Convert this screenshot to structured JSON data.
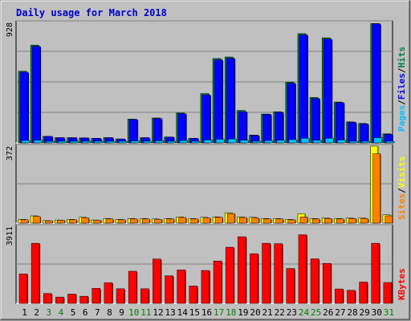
{
  "title": "Daily usage for March 2018",
  "colors": {
    "background": "#c0c0c0",
    "plot": "#c0c0c0",
    "title": "#0000cc",
    "hits": "#008040",
    "files": "#0000ff",
    "pages": "#00c0ff",
    "visits": "#ffff00",
    "sites": "#ff8000",
    "kbytes": "#ff0000",
    "grid": "#808080",
    "weekend_label": "#008000",
    "weekday_label": "#000000"
  },
  "chart_data": [
    {
      "type": "bar",
      "title": "Daily usage for March 2018",
      "ymax_label": "928",
      "ylim": [
        0,
        928
      ],
      "legend": [
        "Pages",
        "Files",
        "Hits"
      ],
      "legend_separators": [
        "/",
        "/"
      ],
      "categories": [
        "1",
        "2",
        "3",
        "4",
        "5",
        "6",
        "7",
        "8",
        "9",
        "10",
        "11",
        "12",
        "13",
        "14",
        "15",
        "16",
        "17",
        "18",
        "19",
        "20",
        "21",
        "22",
        "23",
        "24",
        "25",
        "26",
        "27",
        "28",
        "29",
        "30",
        "31"
      ],
      "weekend_days": [
        "3",
        "4",
        "10",
        "11",
        "17",
        "18",
        "24",
        "25",
        "31"
      ],
      "series": [
        {
          "name": "Hits",
          "values": [
            552,
            754,
            50,
            40,
            40,
            38,
            35,
            40,
            30,
            183,
            40,
            192,
            45,
            230,
            35,
            380,
            650,
            662,
            250,
            60,
            222,
            240,
            468,
            842,
            350,
            810,
            315,
            162,
            150,
            920,
            70
          ]
        },
        {
          "name": "Files",
          "values": [
            545,
            744,
            50,
            40,
            40,
            38,
            35,
            40,
            30,
            180,
            40,
            188,
            45,
            225,
            35,
            370,
            640,
            652,
            240,
            58,
            220,
            235,
            460,
            832,
            342,
            800,
            310,
            158,
            146,
            918,
            65
          ]
        },
        {
          "name": "Pages",
          "values": [
            18,
            20,
            10,
            8,
            8,
            7,
            6,
            8,
            6,
            15,
            8,
            16,
            9,
            18,
            7,
            22,
            28,
            30,
            20,
            10,
            18,
            20,
            25,
            35,
            20,
            35,
            22,
            12,
            11,
            40,
            10
          ]
        }
      ]
    },
    {
      "type": "bar",
      "ymax_label": "372",
      "ylim": [
        0,
        372
      ],
      "legend": [
        "Sites",
        "Visits"
      ],
      "legend_separators": [
        "/"
      ],
      "categories": [
        "1",
        "2",
        "3",
        "4",
        "5",
        "6",
        "7",
        "8",
        "9",
        "10",
        "11",
        "12",
        "13",
        "14",
        "15",
        "16",
        "17",
        "18",
        "19",
        "20",
        "21",
        "22",
        "23",
        "24",
        "25",
        "26",
        "27",
        "28",
        "29",
        "30",
        "31"
      ],
      "series": [
        {
          "name": "Visits",
          "values": [
            18,
            35,
            12,
            15,
            18,
            28,
            15,
            22,
            18,
            22,
            22,
            20,
            22,
            30,
            22,
            28,
            30,
            50,
            30,
            28,
            22,
            22,
            18,
            45,
            22,
            25,
            22,
            25,
            25,
            372,
            40
          ]
        },
        {
          "name": "Sites",
          "values": [
            16,
            32,
            11,
            14,
            16,
            25,
            14,
            20,
            16,
            20,
            20,
            18,
            20,
            27,
            20,
            25,
            28,
            46,
            27,
            25,
            20,
            20,
            16,
            30,
            20,
            22,
            20,
            22,
            22,
            335,
            35
          ]
        }
      ]
    },
    {
      "type": "bar",
      "ymax_label": "3911",
      "ylim": [
        0,
        3911
      ],
      "legend": [
        "KBytes"
      ],
      "categories": [
        "1",
        "2",
        "3",
        "4",
        "5",
        "6",
        "7",
        "8",
        "9",
        "10",
        "11",
        "12",
        "13",
        "14",
        "15",
        "16",
        "17",
        "18",
        "19",
        "20",
        "21",
        "22",
        "23",
        "24",
        "25",
        "26",
        "27",
        "28",
        "29",
        "30",
        "31"
      ],
      "series": [
        {
          "name": "KBytes",
          "values": [
            1490,
            3050,
            500,
            320,
            470,
            360,
            760,
            1050,
            740,
            1630,
            740,
            2250,
            1400,
            1700,
            880,
            1670,
            2150,
            2850,
            3380,
            2520,
            3050,
            3030,
            1770,
            3480,
            2260,
            2030,
            730,
            660,
            1080,
            3050,
            1060
          ]
        }
      ]
    }
  ]
}
